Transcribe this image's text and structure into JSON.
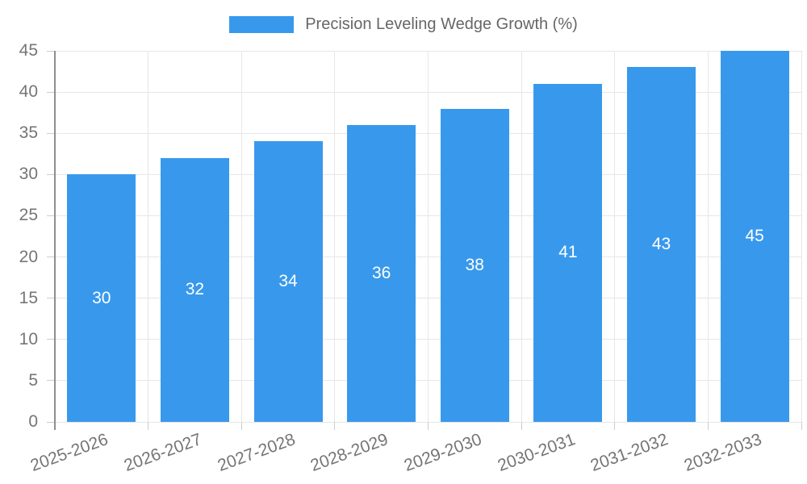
{
  "legend": {
    "label": "Precision Leveling Wedge Growth (%)",
    "swatch_color": "#3899EC"
  },
  "chart_data": {
    "type": "bar",
    "title": "Precision Leveling Wedge Growth (%)",
    "categories": [
      "2025-2026",
      "2026-2027",
      "2027-2028",
      "2028-2029",
      "2029-2030",
      "2030-2031",
      "2031-2032",
      "2032-2033"
    ],
    "values": [
      30,
      32,
      34,
      36,
      38,
      41,
      43,
      45
    ],
    "bar_labels": [
      "30",
      "32",
      "34",
      "36",
      "38",
      "41",
      "43",
      "45"
    ],
    "xlabel": "",
    "ylabel": "",
    "ylim": [
      0,
      45
    ],
    "yticks": [
      0,
      5,
      10,
      15,
      20,
      25,
      30,
      35,
      40,
      45
    ],
    "grid": true,
    "legend_position": "top",
    "bar_color": "#3899EC",
    "bar_label_color": "#ffffff",
    "tick_label_color": "#757575",
    "gridline_color": "#e6e6e6",
    "x_label_rotation_deg": -20
  }
}
